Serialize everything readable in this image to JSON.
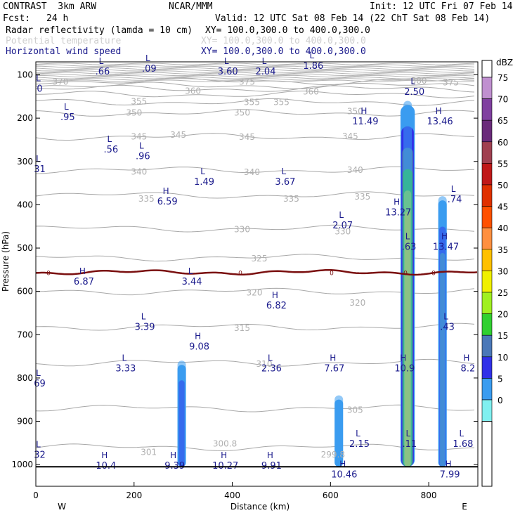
{
  "header": {
    "model": "CONTRAST  3km ARW",
    "center": "NCAR/MMM",
    "init": "Init: 12 UTC Fri 07 Feb 14",
    "fcst_label": "Fcst:",
    "fcst_value": "24 h",
    "valid": "Valid: 12 UTC Sat 08 Feb 14 (22 ChT Sat 08 Feb 14)",
    "fields": [
      {
        "name": "Radar reflectivity (lamda = 10 cm)",
        "xy": "XY= 100.0,300.0 to 400.0,300.0"
      },
      {
        "name": "Potential temperature",
        "xy": "XY= 100.0,300.0 to 400.0,300.0"
      },
      {
        "name": "Horizontal wind speed",
        "xy": "XY= 100.0,300.0 to 400.0,300.0"
      }
    ]
  },
  "chart_data": {
    "type": "cross-section",
    "xlabel": "Distance (km)",
    "ylabel": "Pressure (hPa)",
    "xlim": [
      0,
      900
    ],
    "ylim": [
      1050,
      70
    ],
    "x_ticks": [
      "0",
      "200",
      "400",
      "600",
      "800"
    ],
    "x_tick_values": [
      0,
      200,
      400,
      600,
      800
    ],
    "y_ticks": [
      "100",
      "200",
      "300",
      "400",
      "500",
      "600",
      "700",
      "800",
      "900",
      "1000"
    ],
    "y_tick_values": [
      100,
      200,
      300,
      400,
      500,
      600,
      700,
      800,
      900,
      1000
    ],
    "west_label": "W",
    "east_label": "E",
    "colorbar": {
      "unit": "dBZ",
      "levels": [
        "75",
        "70",
        "65",
        "60",
        "55",
        "50",
        "45",
        "40",
        "35",
        "30",
        "25",
        "20",
        "15",
        "10",
        "5",
        "0"
      ],
      "colors": [
        "#c090d0",
        "#8040a0",
        "#6a2a7a",
        "#a04050",
        "#c01818",
        "#e03000",
        "#ff5000",
        "#ff9040",
        "#ffc000",
        "#f0f000",
        "#a0f020",
        "#30d030",
        "#4a78b8",
        "#3030e8",
        "#3a9cf0",
        "#80f0f0"
      ]
    },
    "theta_contours": [
      {
        "value": 375,
        "p": 115
      },
      {
        "value": 370,
        "p": 125
      },
      {
        "value": 365,
        "p": 132
      },
      {
        "value": 360,
        "p": 145
      },
      {
        "value": 355,
        "p": 163
      },
      {
        "value": 350,
        "p": 188
      },
      {
        "value": 345,
        "p": 243
      },
      {
        "value": 340,
        "p": 320
      },
      {
        "value": 335,
        "p": 378
      },
      {
        "value": 330,
        "p": 455
      },
      {
        "value": 325,
        "p": 522
      },
      {
        "value": 320,
        "p": 600
      },
      {
        "value": 315,
        "p": 682
      },
      {
        "value": 310,
        "p": 765
      },
      {
        "value": 305,
        "p": 870
      },
      {
        "value": 301,
        "p": 960
      }
    ],
    "theta_labels": [
      {
        "text": "370",
        "x": 50,
        "p": 115
      },
      {
        "text": "375",
        "x": 430,
        "p": 115
      },
      {
        "text": "380",
        "x": 780,
        "p": 112
      },
      {
        "text": "375",
        "x": 845,
        "p": 116
      },
      {
        "text": "360",
        "x": 320,
        "p": 136
      },
      {
        "text": "360",
        "x": 560,
        "p": 137
      },
      {
        "text": "355",
        "x": 210,
        "p": 160
      },
      {
        "text": "355",
        "x": 440,
        "p": 162
      },
      {
        "text": "355",
        "x": 500,
        "p": 162
      },
      {
        "text": "350",
        "x": 200,
        "p": 186
      },
      {
        "text": "350",
        "x": 420,
        "p": 186
      },
      {
        "text": "350",
        "x": 650,
        "p": 183
      },
      {
        "text": "345",
        "x": 210,
        "p": 241
      },
      {
        "text": "345",
        "x": 290,
        "p": 237
      },
      {
        "text": "345",
        "x": 430,
        "p": 242
      },
      {
        "text": "345",
        "x": 640,
        "p": 240
      },
      {
        "text": "340",
        "x": 210,
        "p": 322
      },
      {
        "text": "340",
        "x": 440,
        "p": 323
      },
      {
        "text": "340",
        "x": 650,
        "p": 318
      },
      {
        "text": "335",
        "x": 225,
        "p": 385
      },
      {
        "text": "335",
        "x": 520,
        "p": 385
      },
      {
        "text": "335",
        "x": 665,
        "p": 380
      },
      {
        "text": "330",
        "x": 420,
        "p": 455
      },
      {
        "text": "330",
        "x": 625,
        "p": 460
      },
      {
        "text": "325",
        "x": 455,
        "p": 523
      },
      {
        "text": "320",
        "x": 445,
        "p": 601
      },
      {
        "text": "320",
        "x": 655,
        "p": 625
      },
      {
        "text": "315",
        "x": 420,
        "p": 683
      },
      {
        "text": "310",
        "x": 465,
        "p": 766
      },
      {
        "text": "305",
        "x": 650,
        "p": 872
      },
      {
        "text": "301",
        "x": 230,
        "p": 970
      },
      {
        "text": "300.8",
        "x": 385,
        "p": 950
      },
      {
        "text": "299.8",
        "x": 605,
        "p": 975
      }
    ],
    "zero_isotherm": {
      "label": "0",
      "p": 556
    },
    "wind_extrema": [
      {
        "type": "L",
        "value": ".66",
        "x": 133,
        "p": 75
      },
      {
        "type": "L",
        "value": ".09",
        "x": 228,
        "p": 68
      },
      {
        "type": "L",
        "value": "3.60",
        "x": 388,
        "p": 75
      },
      {
        "type": "L",
        "value": "2.04",
        "x": 465,
        "p": 75
      },
      {
        "type": "L",
        "value": "1.86",
        "x": 562,
        "p": 62
      },
      {
        "type": "L",
        "value": "2.50",
        "x": 768,
        "p": 122
      },
      {
        "type": "L",
        "value": ".95",
        "x": 62,
        "p": 180
      },
      {
        "type": "H",
        "value": "11.49",
        "x": 668,
        "p": 190
      },
      {
        "type": "H",
        "value": "13.46",
        "x": 820,
        "p": 190
      },
      {
        "type": "L",
        "value": ".56",
        "x": 150,
        "p": 255
      },
      {
        "type": "L",
        "value": ".96",
        "x": 215,
        "p": 270
      },
      {
        "type": "L",
        "value": "1.49",
        "x": 340,
        "p": 330
      },
      {
        "type": "L",
        "value": "3.67",
        "x": 505,
        "p": 330
      },
      {
        "type": "H",
        "value": "6.59",
        "x": 265,
        "p": 375
      },
      {
        "type": "L",
        "value": ".74",
        "x": 850,
        "p": 370
      },
      {
        "type": "H",
        "value": "13.27",
        "x": 735,
        "p": 400
      },
      {
        "type": "L",
        "value": "2.07",
        "x": 622,
        "p": 430
      },
      {
        "type": "L",
        "value": ".63",
        "x": 757,
        "p": 480
      },
      {
        "type": "H",
        "value": "13.47",
        "x": 832,
        "p": 480
      },
      {
        "type": "H",
        "value": "6.87",
        "x": 95,
        "p": 560
      },
      {
        "type": "L",
        "value": "3.44",
        "x": 315,
        "p": 560
      },
      {
        "type": "H",
        "value": "6.82",
        "x": 487,
        "p": 615
      },
      {
        "type": "L",
        "value": "3.39",
        "x": 219,
        "p": 665
      },
      {
        "type": "L",
        "value": ".43",
        "x": 835,
        "p": 665
      },
      {
        "type": "H",
        "value": "9.08",
        "x": 330,
        "p": 710
      },
      {
        "type": "L",
        "value": "3.33",
        "x": 180,
        "p": 760
      },
      {
        "type": "L",
        "value": "2.36",
        "x": 477,
        "p": 760
      },
      {
        "type": "H",
        "value": "7.67",
        "x": 605,
        "p": 760
      },
      {
        "type": "H",
        "value": "10.9",
        "x": 748,
        "p": 760
      },
      {
        "type": "H",
        "value": "8.2",
        "x": 877,
        "p": 760
      },
      {
        "type": "L",
        "value": "2.15",
        "x": 656,
        "p": 935
      },
      {
        "type": "L",
        "value": "1.68",
        "x": 867,
        "p": 935
      },
      {
        "type": "L",
        "value": ".11",
        "x": 758,
        "p": 935
      },
      {
        "type": "H",
        "value": "10.4",
        "x": 140,
        "p": 985
      },
      {
        "type": "H",
        "value": "9.39",
        "x": 280,
        "p": 985
      },
      {
        "type": "H",
        "value": "10.27",
        "x": 383,
        "p": 985
      },
      {
        "type": "H",
        "value": "9.91",
        "x": 477,
        "p": 985
      },
      {
        "type": "H",
        "value": "10.46",
        "x": 625,
        "p": 1005
      },
      {
        "type": "H",
        "value": "7.99",
        "x": 840,
        "p": 1005
      },
      {
        "type": "L",
        "value": "0",
        "x": 5,
        "p": 115
      },
      {
        "type": "L",
        "value": "31",
        "x": 5,
        "p": 300
      },
      {
        "type": "L",
        "value": "69",
        "x": 5,
        "p": 795
      },
      {
        "type": "L",
        "value": "32",
        "x": 5,
        "p": 960
      }
    ],
    "reflectivity_cells": [
      {
        "x": 297,
        "p_top": 760,
        "p_bot": 1005,
        "max_dbz": 12
      },
      {
        "x": 617,
        "p_top": 840,
        "p_bot": 1005,
        "max_dbz": 8
      },
      {
        "x": 757,
        "p_top": 160,
        "p_bot": 1005,
        "max_dbz": 30
      },
      {
        "x": 828,
        "p_top": 380,
        "p_bot": 1005,
        "max_dbz": 18
      }
    ]
  }
}
